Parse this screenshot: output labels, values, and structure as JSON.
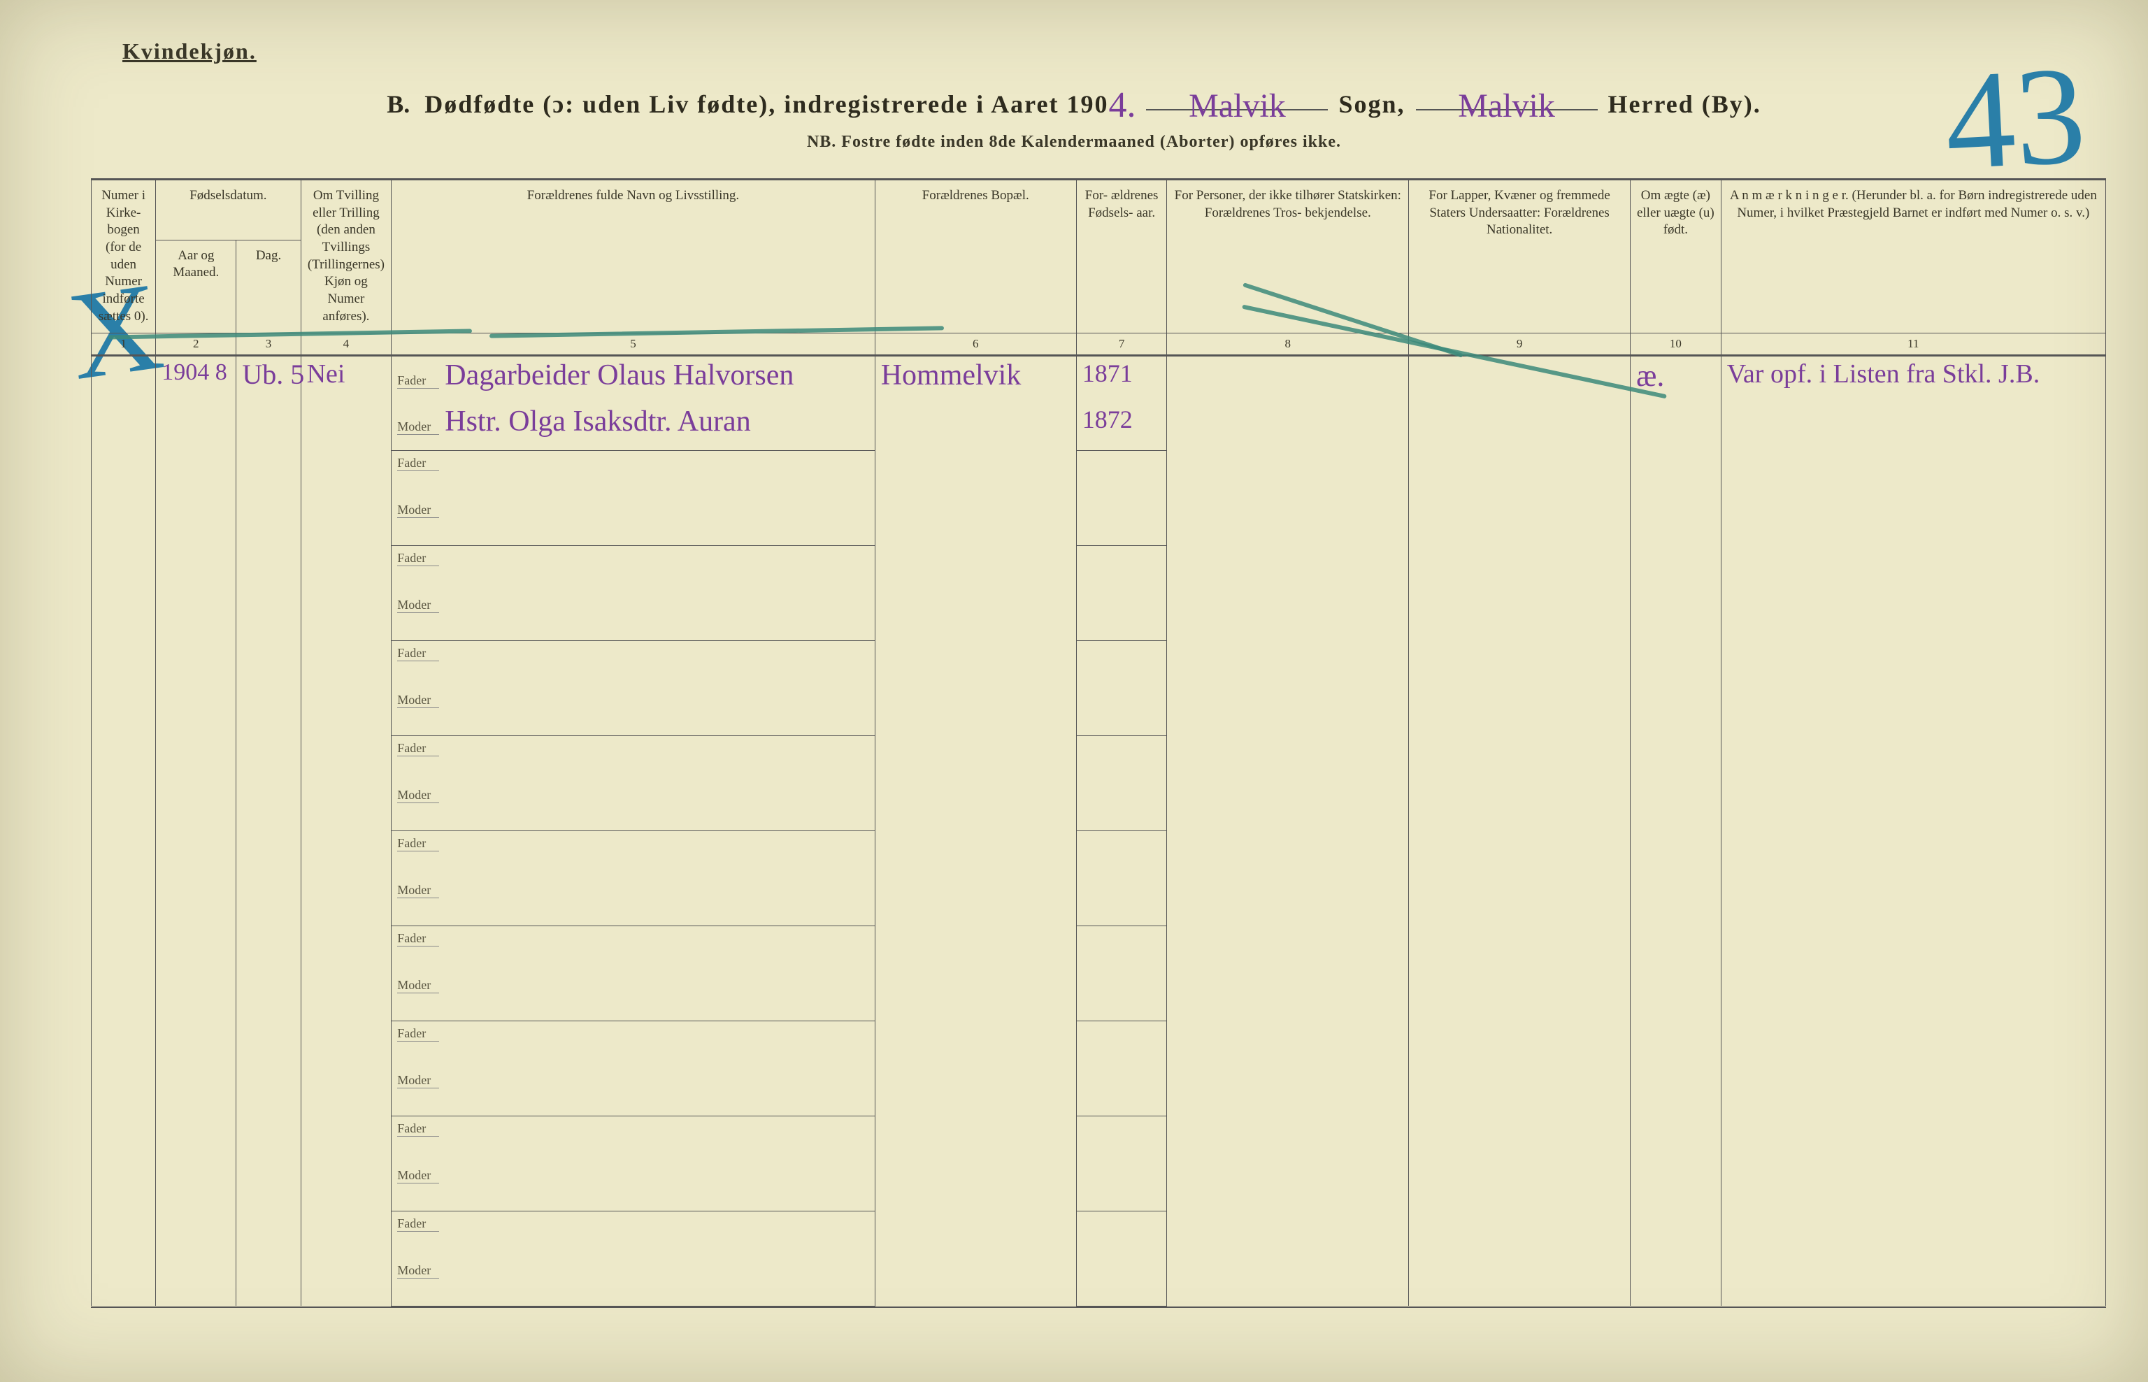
{
  "page": {
    "gender_heading": "Kvindekjøn.",
    "section_letter": "B.",
    "title_printed_1": "Dødfødte (ɔ: uden Liv fødte), indregistrerede i Aaret 190",
    "year_suffix": "4.",
    "sogn_value": "Malvik",
    "sogn_label": "Sogn,",
    "herred_value": "Malvik",
    "herred_label": "Herred (By).",
    "nb_line": "NB.  Fostre fødte inden 8de Kalendermaaned (Aborter) opføres ikke.",
    "corner_number": "43"
  },
  "columns": {
    "c1": "Numer i Kirke- bogen (for de uden Numer indførte sættes 0).",
    "c2_top": "Fødselsdatum.",
    "c2a": "Aar og Maaned.",
    "c2b": "Dag.",
    "c4": "Om Tvilling eller Trilling (den anden Tvillings (Trillingernes) Kjøn og Numer anføres).",
    "c5": "Forældrenes fulde Navn og Livsstilling.",
    "c6": "Forældrenes Bopæl.",
    "c7": "For- ældrenes Fødsels- aar.",
    "c8": "For Personer, der ikke tilhører Statskirken: Forældrenes Tros- bekjendelse.",
    "c9": "For Lapper, Kvæner og fremmede Staters Undersaatter: Forældrenes Nationalitet.",
    "c10": "Om ægte (æ) eller uægte (u) født.",
    "c11": "A n m æ r k n i n g e r. (Herunder bl. a. for Børn indregistrerede uden Numer, i hvilket Præstegjeld Barnet er indført med Numer o. s. v.)"
  },
  "colnums": [
    "1",
    "2",
    "3",
    "4",
    "5",
    "6",
    "7",
    "8",
    "9",
    "10",
    "11"
  ],
  "parent_labels": {
    "fader": "Fader",
    "moder": "Moder"
  },
  "entry": {
    "col1_mark": "X",
    "year_month": "1904 8",
    "day": "Ub. 5",
    "col4": "Nei",
    "fader_text": "Dagarbeider Olaus Halvorsen",
    "moder_text": "Hstr. Olga Isaksdtr. Auran",
    "bopael": "Hommelvik",
    "fader_aar": "1871",
    "moder_aar": "1872",
    "col10": "æ.",
    "remarks": "Var opf. i Listen fra Stkl.   J.B."
  },
  "style": {
    "paper_bg": "#ede9c9",
    "ink": "#3a3728",
    "rule": "#555555",
    "purple_ink": "#7a3d9a",
    "teal_ink": "#3c8a7a",
    "blue_pencil": "#2a7fa8",
    "script_font": "Brush Script MT",
    "base_fontsize_pt": 20,
    "title_fontsize_pt": 36,
    "bignum_fontsize_pt": 200
  }
}
